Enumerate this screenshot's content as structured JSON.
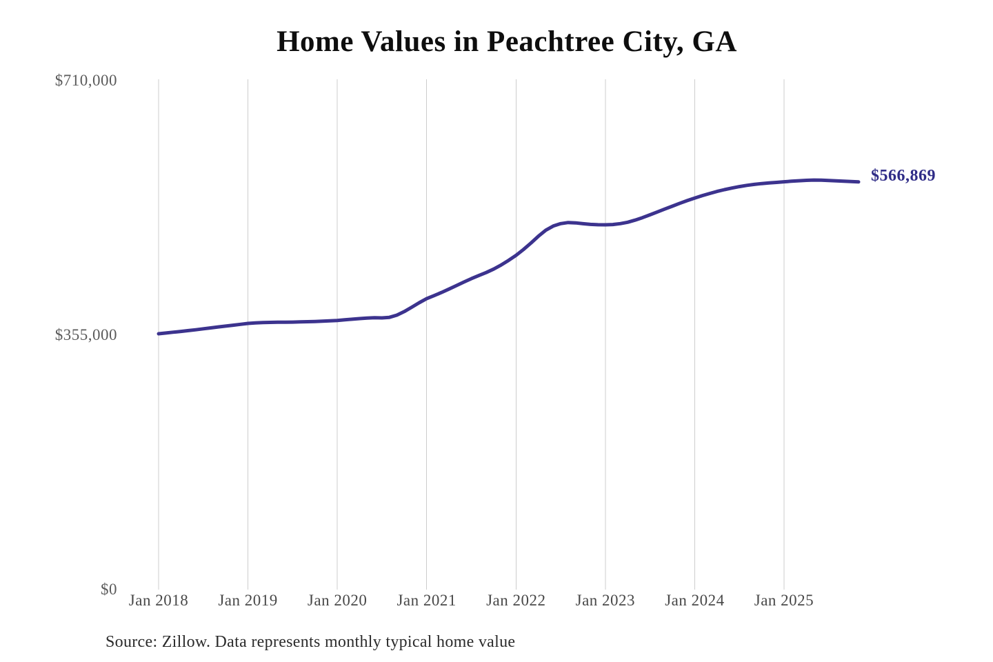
{
  "chart_title": "Home Values in Peachtree City, GA",
  "end_label": "$566,869",
  "source_note": "Source: Zillow. Data represents monthly typical home value",
  "colors": {
    "line": "#3c338e",
    "end_label": "#2f2c87",
    "title": "#0e0e0e",
    "gridline": "#cccccc",
    "y_tick": "#5a5a5a",
    "x_tick": "#484848",
    "source": "#2b2b2b"
  },
  "chart_data": {
    "type": "line",
    "title": "Home Values in Peachtree City, GA",
    "xlabel": "",
    "ylabel": "",
    "ylim": [
      0,
      710000
    ],
    "grid": "vertical-gridlines-only",
    "legend_position": "none",
    "x_tick_labels": [
      "Jan 2018",
      "Jan 2019",
      "Jan 2020",
      "Jan 2021",
      "Jan 2022",
      "Jan 2023",
      "Jan 2024",
      "Jan 2025"
    ],
    "y_ticks": [
      {
        "label": "$710,000",
        "value": 710000
      },
      {
        "label": "$355,000",
        "value": 355000
      },
      {
        "label": "$0",
        "value": 0
      }
    ],
    "end_annotation": {
      "label": "$566,869",
      "value": 566869
    },
    "series": [
      {
        "name": "Monthly typical home value (USD)",
        "x_start_month": "2018-01",
        "x_end_month": "2025-11",
        "values": [
          355000,
          356100,
          357200,
          358300,
          359400,
          360600,
          361900,
          363200,
          364500,
          365700,
          366900,
          368200,
          369400,
          370100,
          370600,
          370900,
          371100,
          371200,
          371300,
          371500,
          371800,
          372100,
          372500,
          373000,
          373600,
          374400,
          375300,
          376200,
          376900,
          377300,
          377100,
          377900,
          381000,
          386000,
          392000,
          398300,
          404000,
          408200,
          412600,
          417300,
          422200,
          427200,
          431900,
          436200,
          440400,
          445200,
          450900,
          457400,
          464400,
          472600,
          481500,
          491000,
          499500,
          505300,
          508600,
          510200,
          509700,
          508500,
          507600,
          507100,
          507000,
          507400,
          508600,
          510600,
          513500,
          517000,
          521000,
          525000,
          529000,
          533000,
          537000,
          540800,
          544300,
          547600,
          550700,
          553600,
          556100,
          558300,
          560300,
          562000,
          563400,
          564500,
          565400,
          566200,
          567000,
          567800,
          568500,
          569100,
          569400,
          569300,
          568900,
          568400,
          567800,
          567300,
          566869
        ]
      }
    ]
  }
}
